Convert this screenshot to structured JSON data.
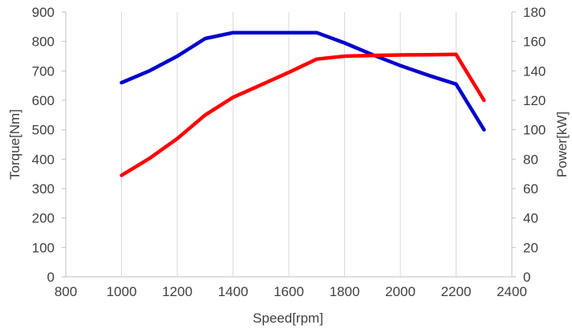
{
  "chart_data": {
    "type": "line",
    "title": "",
    "xlabel": "Speed[rpm]",
    "ylabel": "Torque[Nm]",
    "y2label": "Power[kW]",
    "xlim": [
      800,
      2400
    ],
    "ylim": [
      0,
      900
    ],
    "y2lim": [
      0,
      180
    ],
    "xticks": [
      800,
      1000,
      1200,
      1400,
      1600,
      1800,
      2000,
      2200,
      2400
    ],
    "yticks": [
      0,
      100,
      200,
      300,
      400,
      500,
      600,
      700,
      800,
      900
    ],
    "y2ticks": [
      0,
      20,
      40,
      60,
      80,
      100,
      120,
      140,
      160,
      180
    ],
    "grid": "vertical",
    "legend": "none",
    "series": [
      {
        "axis": "left",
        "color": "#0000cc",
        "x": [
          1000,
          1100,
          1200,
          1300,
          1400,
          1500,
          1600,
          1700,
          1800,
          1900,
          2000,
          2100,
          2200,
          2300
        ],
        "values": [
          660,
          700,
          750,
          810,
          830,
          830,
          830,
          830,
          795,
          755,
          718,
          685,
          655,
          500
        ]
      },
      {
        "axis": "right",
        "color": "#ff0000",
        "x": [
          1000,
          1100,
          1200,
          1300,
          1400,
          1500,
          1600,
          1700,
          1800,
          1900,
          2000,
          2100,
          2200,
          2300
        ],
        "values": [
          69,
          80.5,
          94,
          110,
          122,
          130.5,
          139,
          148,
          150,
          150.5,
          150.8,
          151,
          151.2,
          120
        ]
      }
    ]
  },
  "colors": {
    "grid": "#d9d9d9",
    "axis": "#bfbfbf",
    "text": "#404040",
    "edge_strip": "#4472c4"
  }
}
